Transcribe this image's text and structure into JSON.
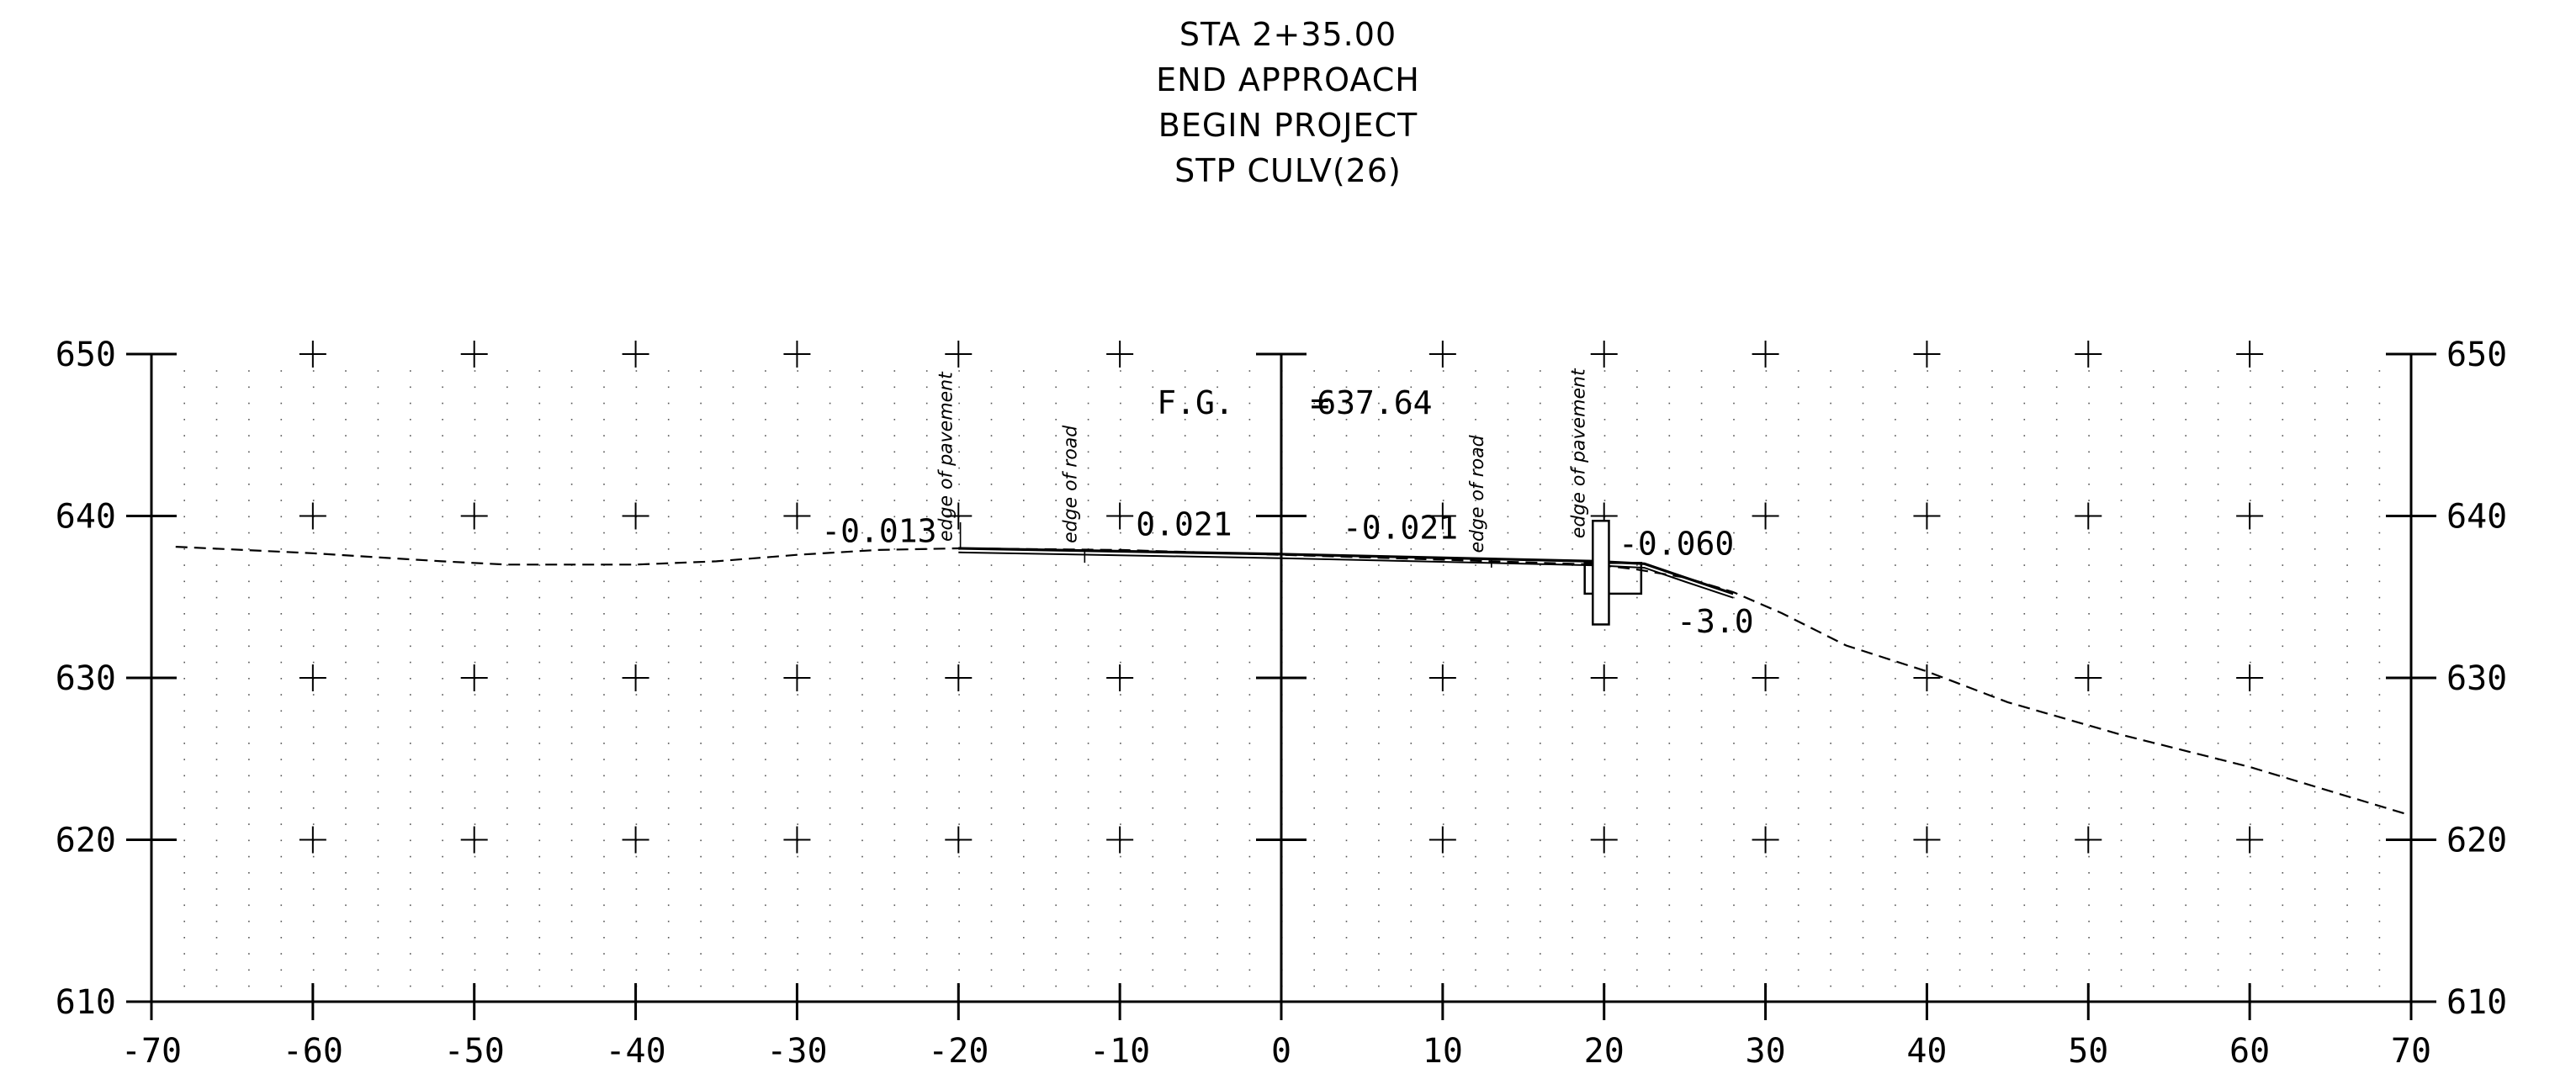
{
  "title_lines": [
    "STA 2+35.00",
    "END APPROACH",
    "BEGIN PROJECT",
    "STP CULV(26)"
  ],
  "chart_data": {
    "type": "line",
    "xlim": [
      -70,
      70
    ],
    "ylim": [
      610,
      650
    ],
    "x_ticks": [
      -70,
      -60,
      -50,
      -40,
      -30,
      -20,
      -10,
      0,
      10,
      20,
      30,
      40,
      50,
      60,
      70
    ],
    "x_tick_labels": [
      "-70",
      "-60",
      "-50",
      "-40",
      "-30",
      "-20",
      "-10",
      "0",
      "10",
      "20",
      "30",
      "40",
      "50",
      "60",
      "70"
    ],
    "y_ticks": [
      610,
      620,
      630,
      640,
      650
    ],
    "y_tick_labels": [
      "610",
      "620",
      "630",
      "640",
      "650"
    ],
    "grid": "dotted",
    "existing_ground": {
      "x": [
        -68.5,
        -60,
        -52,
        -48,
        -40,
        -35,
        -30,
        -25,
        -20,
        -10,
        0,
        10,
        19.5,
        22,
        25,
        28,
        31,
        35,
        40,
        45,
        52,
        60,
        70
      ],
      "y": [
        638.1,
        637.7,
        637.2,
        637.0,
        637.0,
        637.2,
        637.6,
        637.9,
        638.0,
        637.9,
        637.6,
        637.3,
        637.0,
        636.7,
        636.2,
        635.3,
        634.0,
        632.0,
        630.4,
        628.5,
        626.5,
        624.5,
        621.5
      ]
    },
    "proposed_section": {
      "x": [
        -20,
        0,
        19.5,
        22.5,
        25,
        28
      ],
      "y": [
        638.0,
        637.64,
        637.2,
        637.05,
        636.2,
        635.2
      ]
    },
    "culvert_headwall": {
      "x": [
        19.3,
        20.3
      ],
      "y": [
        633.3,
        639.7
      ]
    },
    "culvert_box": {
      "x": [
        18.8,
        22.3
      ],
      "y": [
        635.2,
        637.1
      ]
    },
    "vertical_labels": [
      {
        "text": "edge of pavement",
        "x": -20.4,
        "y_top": 650,
        "y_bottom": 638.0
      },
      {
        "text": "edge of road",
        "x": -12.7,
        "y_top": 647.5,
        "y_bottom": 637.9
      },
      {
        "text": "edge of road",
        "x": 12.5,
        "y_top": 647.2,
        "y_bottom": 637.3
      },
      {
        "text": "edge of pavement",
        "x": 18.8,
        "y_top": 650,
        "y_bottom": 638.2
      }
    ],
    "annotations": [
      {
        "text": "-0.013",
        "x": -28.5,
        "y": 638.4
      },
      {
        "text": "0.021",
        "x": -9.0,
        "y": 638.8
      },
      {
        "text": "-0.021",
        "x": 3.8,
        "y": 638.6
      },
      {
        "text": "-0.060",
        "x": 20.9,
        "y": 637.6
      },
      {
        "text": "-3.0",
        "x": 24.5,
        "y": 632.8
      },
      {
        "text": "F.G.",
        "x": -7.7,
        "y": 646.3
      },
      {
        "text": "=",
        "x": 1.8,
        "y": 646.3
      },
      {
        "text": "637.64",
        "x": 2.2,
        "y": 646.3
      }
    ]
  }
}
